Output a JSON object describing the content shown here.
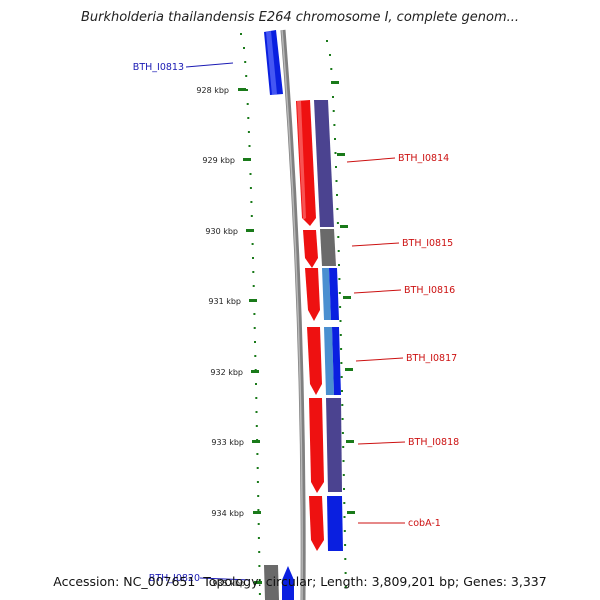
{
  "title": "Burkholderia thailandensis E264 chromosome I, complete genom...",
  "footer": {
    "accession_label": "Accession:",
    "accession": "NC_007651",
    "topology_label": "Topology:",
    "topology": "circular",
    "length_label": "Length:",
    "length": "3,809,201 bp",
    "genes_label": "Genes:",
    "genes": "3,337"
  },
  "axis_labels": [
    "928 kbp",
    "929 kbp",
    "930 kbp",
    "931 kbp",
    "932 kbp",
    "933 kbp",
    "934 kbp",
    "935 kbp"
  ],
  "colors": {
    "forward_strand": "#ee1111",
    "reverse_strand": "#0a1fe0",
    "cog_purple": "#4b4390",
    "cog_grey": "#6a6a6a",
    "backbone": "#808080",
    "ticks": "#1a7a1a",
    "label_left": "#1a1ab4",
    "label_right": "#cc1111"
  },
  "gene_labels": [
    {
      "text": "BTH_I0813",
      "side": "left"
    },
    {
      "text": "BTH_I0814",
      "side": "right"
    },
    {
      "text": "BTH_I0815",
      "side": "right"
    },
    {
      "text": "BTH_I0816",
      "side": "right"
    },
    {
      "text": "BTH_I0817",
      "side": "right"
    },
    {
      "text": "BTH_I0818",
      "side": "right"
    },
    {
      "text": "cobA-1",
      "side": "right"
    },
    {
      "text": "BTH_I0820",
      "side": "left"
    }
  ]
}
